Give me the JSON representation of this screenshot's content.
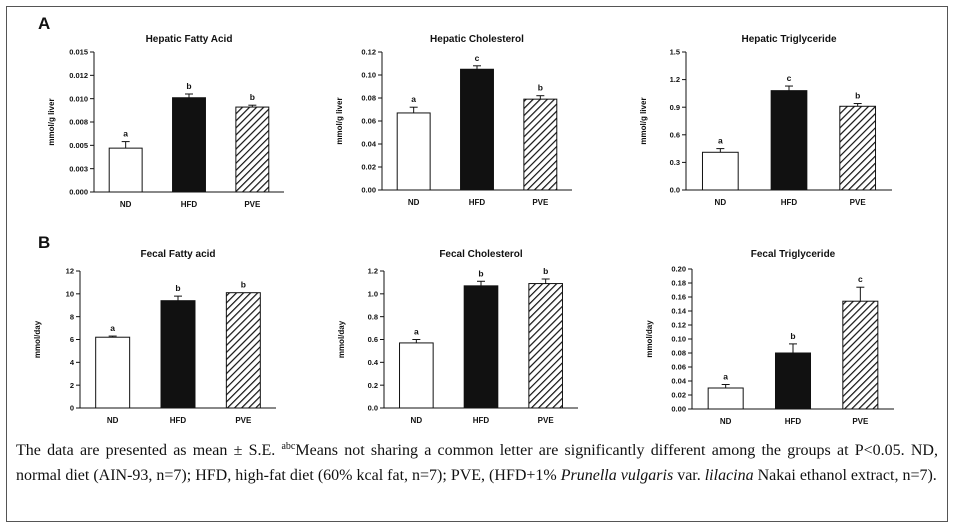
{
  "panels": [
    {
      "letter": "A"
    },
    {
      "letter": "B"
    }
  ],
  "chart_data": [
    {
      "type": "bar",
      "panel": "A",
      "title": "Hepatic Fatty Acid",
      "ylabel": "mmol/g liver",
      "categories": [
        "ND",
        "HFD",
        "PVE"
      ],
      "values": [
        0.0047,
        0.0101,
        0.0091
      ],
      "errors": [
        0.0007,
        0.0004,
        0.0002
      ],
      "sig_letters": [
        "a",
        "b",
        "b"
      ],
      "ylim": [
        0,
        0.015
      ],
      "yticks": [
        "0.000",
        "0.003",
        "0.005",
        "0.008",
        "0.010",
        "0.012",
        "0.015"
      ]
    },
    {
      "type": "bar",
      "panel": "A",
      "title": "Hepatic Cholesterol",
      "ylabel": "mmol/g liver",
      "categories": [
        "ND",
        "HFD",
        "PVE"
      ],
      "values": [
        0.067,
        0.105,
        0.079
      ],
      "errors": [
        0.005,
        0.003,
        0.003
      ],
      "sig_letters": [
        "a",
        "c",
        "b"
      ],
      "ylim": [
        0,
        0.12
      ],
      "yticks": [
        "0.00",
        "0.02",
        "0.04",
        "0.06",
        "0.08",
        "0.10",
        "0.12"
      ]
    },
    {
      "type": "bar",
      "panel": "A",
      "title": "Hepatic Triglyceride",
      "ylabel": "mmol/g liver",
      "categories": [
        "ND",
        "HFD",
        "PVE"
      ],
      "values": [
        0.41,
        1.08,
        0.91
      ],
      "errors": [
        0.04,
        0.05,
        0.03
      ],
      "sig_letters": [
        "a",
        "c",
        "b"
      ],
      "ylim": [
        0,
        1.5
      ],
      "yticks": [
        "0.0",
        "0.3",
        "0.6",
        "0.9",
        "1.2",
        "1.5"
      ]
    },
    {
      "type": "bar",
      "panel": "B",
      "title": "Fecal Fatty acid",
      "ylabel": "mmol/day",
      "categories": [
        "ND",
        "HFD",
        "PVE"
      ],
      "values": [
        6.2,
        9.4,
        10.1
      ],
      "errors": [
        0.1,
        0.4,
        0.0
      ],
      "sig_letters": [
        "a",
        "b",
        "b"
      ],
      "ylim": [
        0,
        12
      ],
      "yticks": [
        "0",
        "2",
        "4",
        "6",
        "8",
        "10",
        "12"
      ]
    },
    {
      "type": "bar",
      "panel": "B",
      "title": "Fecal Cholesterol",
      "ylabel": "mmol/day",
      "categories": [
        "ND",
        "HFD",
        "PVE"
      ],
      "values": [
        0.57,
        1.07,
        1.09
      ],
      "errors": [
        0.03,
        0.04,
        0.04
      ],
      "sig_letters": [
        "a",
        "b",
        "b"
      ],
      "ylim": [
        0,
        1.2
      ],
      "yticks": [
        "0.0",
        "0.2",
        "0.4",
        "0.6",
        "0.8",
        "1.0",
        "1.2"
      ]
    },
    {
      "type": "bar",
      "panel": "B",
      "title": "Fecal Triglyceride",
      "ylabel": "mmol/day",
      "categories": [
        "ND",
        "HFD",
        "PVE"
      ],
      "values": [
        0.03,
        0.08,
        0.154
      ],
      "errors": [
        0.005,
        0.013,
        0.02
      ],
      "sig_letters": [
        "a",
        "b",
        "c"
      ],
      "ylim": [
        0,
        0.2
      ],
      "yticks": [
        "0.00",
        "0.02",
        "0.04",
        "0.06",
        "0.08",
        "0.10",
        "0.12",
        "0.14",
        "0.16",
        "0.18",
        "0.20"
      ]
    }
  ],
  "bar_styles": {
    "ND": "white",
    "HFD": "black",
    "PVE": "hatched"
  },
  "colors": {
    "bar_fill_dark": "#111111",
    "bar_stroke": "#111111",
    "axis": "#111111"
  },
  "caption": {
    "part1": "The data are presented as mean ± S.E. ",
    "superscript": "abc",
    "part2": "Means not sharing a common letter are significantly different among the groups at P<0.05. ND, normal diet (AIN-93, n=7); HFD, high-fat diet (60% kcal fat, n=7); PVE, (HFD+1% ",
    "italic1": "Prunella vulgaris",
    "part3": " var. ",
    "italic2": "lilacina",
    "part4": " Nakai ethanol extract, n=7)."
  }
}
